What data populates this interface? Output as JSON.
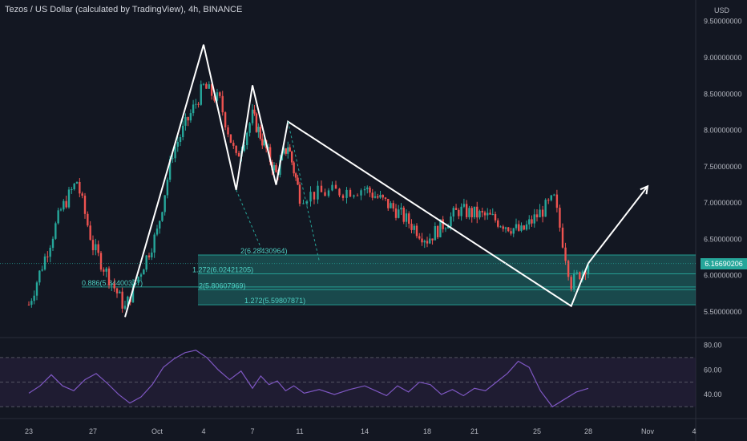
{
  "header": {
    "title": "Tezos / US Dollar (calculated by TradingView), 4h, BINANCE",
    "unit": "USD",
    "last_price_label": "6.16690206"
  },
  "colors": {
    "background": "#131722",
    "up": "#26a69a",
    "down": "#ef5350",
    "zone": "#26a69a",
    "rsi_line": "#7e57c2",
    "rsi_band": "#2a2040",
    "drawing": "#ffffff",
    "text": "#b2b5be"
  },
  "chart_data": [
    {
      "type": "candlestick",
      "title": "Tezos / US Dollar (calculated by TradingView), 4h, BINANCE",
      "ylabel": "USD",
      "x_tick_labels": [
        "23",
        "27",
        "Oct",
        "4",
        "7",
        "11",
        "14",
        "18",
        "21",
        "25",
        "28",
        "Nov",
        "4"
      ],
      "y_tick_labels": [
        "5.50000000",
        "6.00000000",
        "6.50000000",
        "7.00000000",
        "7.50000000",
        "8.00000000",
        "8.50000000",
        "9.00000000",
        "9.50000000"
      ],
      "ylim": [
        5.2,
        9.75
      ],
      "grid": false,
      "approx_close_path": [
        {
          "x": "23",
          "y": 5.6
        },
        {
          "x": "25",
          "y": 6.9
        },
        {
          "x": "26",
          "y": 7.3
        },
        {
          "x": "27",
          "y": 6.4
        },
        {
          "x": "29",
          "y": 5.55
        },
        {
          "x": "Oct",
          "y": 6.6
        },
        {
          "x": "2",
          "y": 7.7
        },
        {
          "x": "4",
          "y": 8.6
        },
        {
          "x": "5",
          "y": 8.4
        },
        {
          "x": "6",
          "y": 7.6
        },
        {
          "x": "7",
          "y": 8.2
        },
        {
          "x": "9",
          "y": 7.4
        },
        {
          "x": "10",
          "y": 7.8
        },
        {
          "x": "11",
          "y": 7.1
        },
        {
          "x": "14",
          "y": 7.2
        },
        {
          "x": "16",
          "y": 6.9
        },
        {
          "x": "18",
          "y": 6.5
        },
        {
          "x": "20",
          "y": 6.9
        },
        {
          "x": "22",
          "y": 6.8
        },
        {
          "x": "24",
          "y": 6.6
        },
        {
          "x": "26",
          "y": 7.05
        },
        {
          "x": "27",
          "y": 5.9
        },
        {
          "x": "28",
          "y": 6.17
        }
      ],
      "fib_levels": [
        {
          "label": "2(6.28430964)",
          "value": 6.2843
        },
        {
          "label": "1.272(6.02421205)",
          "value": 6.0242
        },
        {
          "label": "0.886(5.84400337)",
          "value": 5.844
        },
        {
          "label": "2(5.80607969)",
          "value": 5.8061
        },
        {
          "label": "1.272(5.59807871)",
          "value": 5.5981
        }
      ],
      "pattern_points": [
        {
          "x": "Sep 29",
          "y": 5.43
        },
        {
          "x": "Oct 4",
          "y": 9.18
        },
        {
          "x": "Oct 6",
          "y": 7.18
        },
        {
          "x": "Oct 7",
          "y": 8.62
        },
        {
          "x": "Oct 9",
          "y": 7.25
        },
        {
          "x": "Oct 10",
          "y": 8.12
        },
        {
          "x": "Oct 27",
          "y": 5.58
        },
        {
          "x": "Oct 28",
          "y": 6.17
        },
        {
          "x": "Nov 1",
          "y": 7.23
        }
      ]
    },
    {
      "type": "line",
      "name": "RSI",
      "y_tick_labels": [
        "80.00",
        "60.00",
        "40.00"
      ],
      "ylim": [
        23,
        83
      ],
      "bands": [
        30,
        70
      ],
      "approx_values": [
        41,
        47,
        56,
        47,
        43,
        52,
        57,
        49,
        40,
        33,
        38,
        48,
        62,
        69,
        74,
        76,
        70,
        60,
        52,
        59,
        45,
        55,
        48,
        51,
        43,
        47,
        41,
        44,
        40,
        44,
        47,
        43,
        39,
        47,
        42,
        50,
        48,
        40,
        44,
        39,
        45,
        43,
        50,
        57,
        67,
        62,
        43,
        30,
        36,
        42,
        45
      ]
    }
  ]
}
